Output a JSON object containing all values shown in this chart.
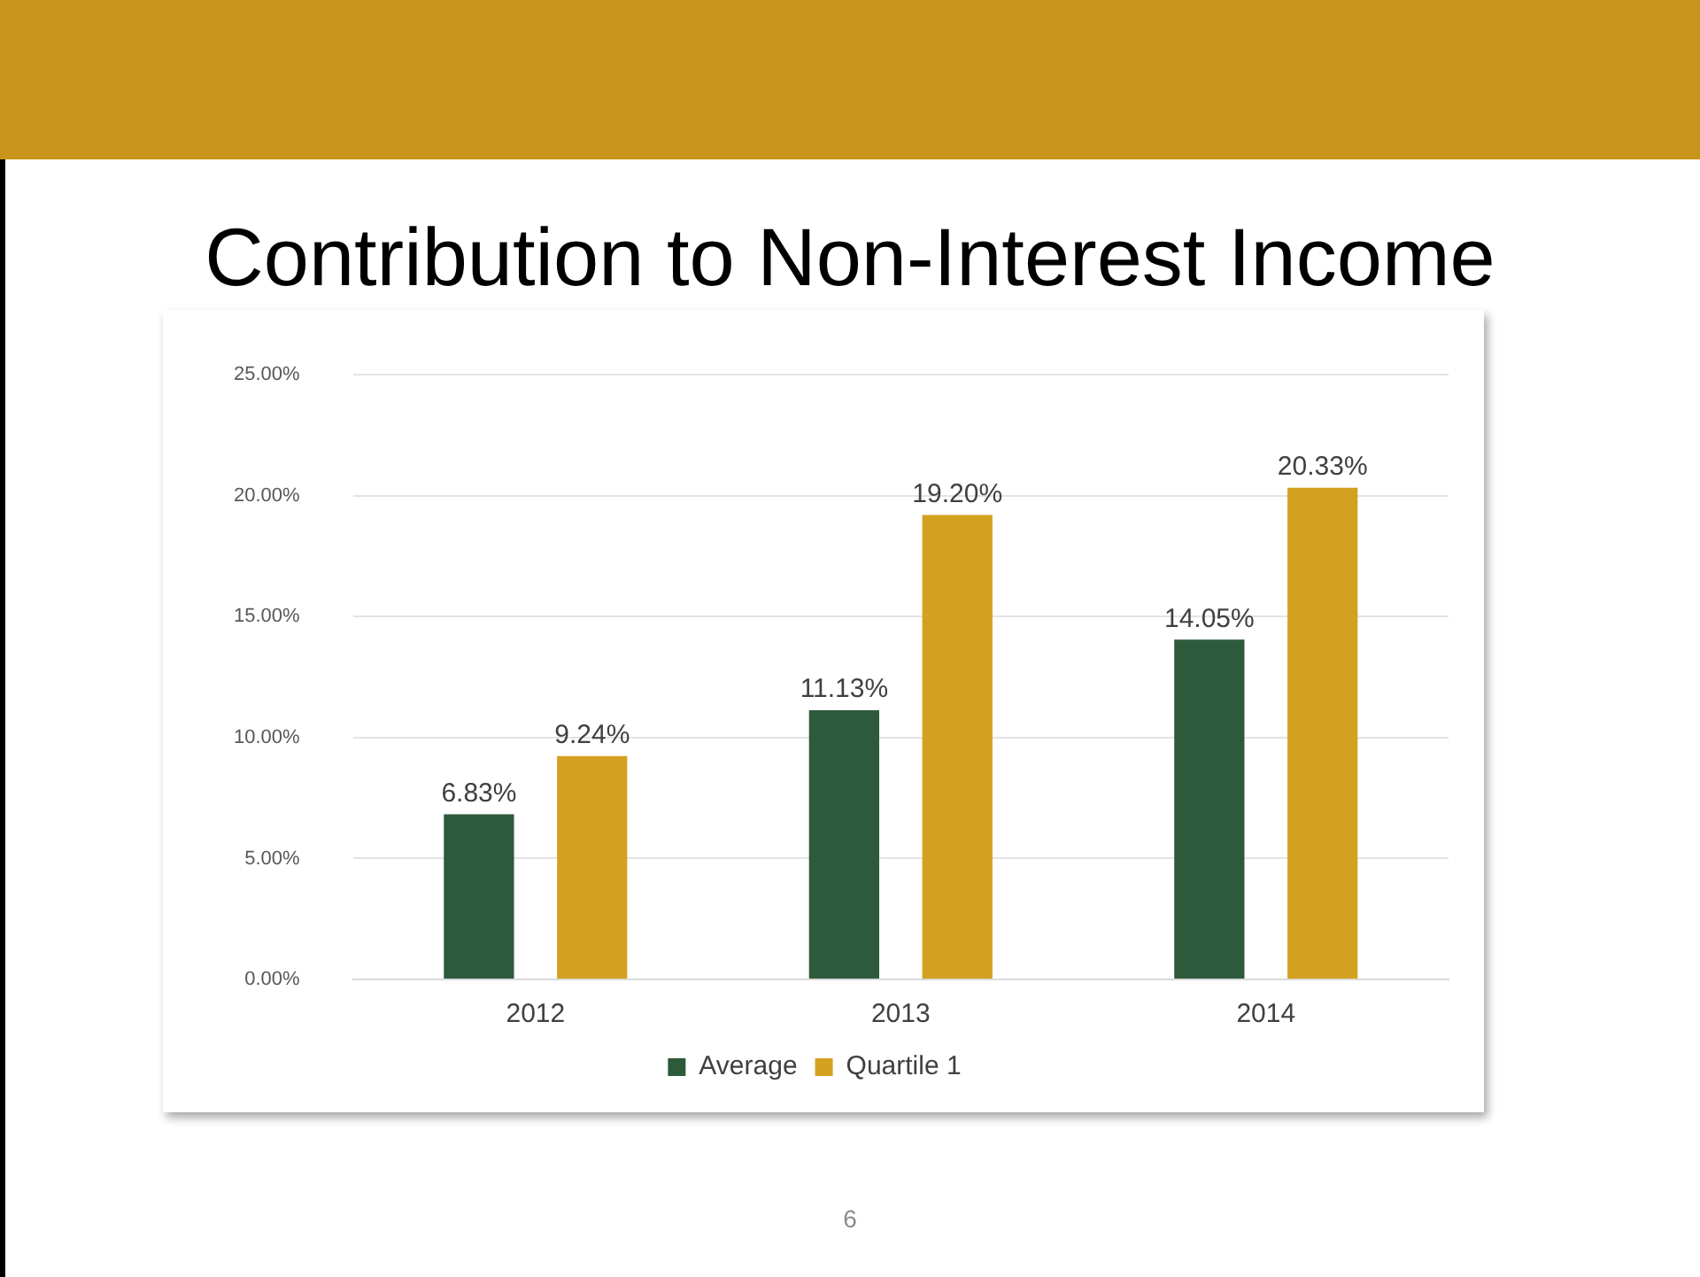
{
  "chart_data": {
    "type": "bar",
    "title": "Contribution to Non-Interest Income",
    "categories": [
      "2012",
      "2013",
      "2014"
    ],
    "series": [
      {
        "name": "Average",
        "color": "#2e5a3c",
        "values": [
          6.83,
          11.13,
          14.05
        ],
        "value_labels": [
          "6.83%",
          "11.13%",
          "14.05%"
        ]
      },
      {
        "name": "Quartile 1",
        "color": "#d4a020",
        "values": [
          9.24,
          19.2,
          20.33
        ],
        "value_labels": [
          "9.24%",
          "19.20%",
          "20.33%"
        ]
      }
    ],
    "ylim": [
      0,
      25
    ],
    "yticks": [
      {
        "value": 0,
        "label": "0.00%"
      },
      {
        "value": 5,
        "label": "5.00%"
      },
      {
        "value": 10,
        "label": "10.00%"
      },
      {
        "value": 15,
        "label": "15.00%"
      },
      {
        "value": 20,
        "label": "20.00%"
      },
      {
        "value": 25,
        "label": "25.00%"
      }
    ],
    "grid": "y",
    "legend": "bottom",
    "annotations": [
      "6"
    ]
  }
}
